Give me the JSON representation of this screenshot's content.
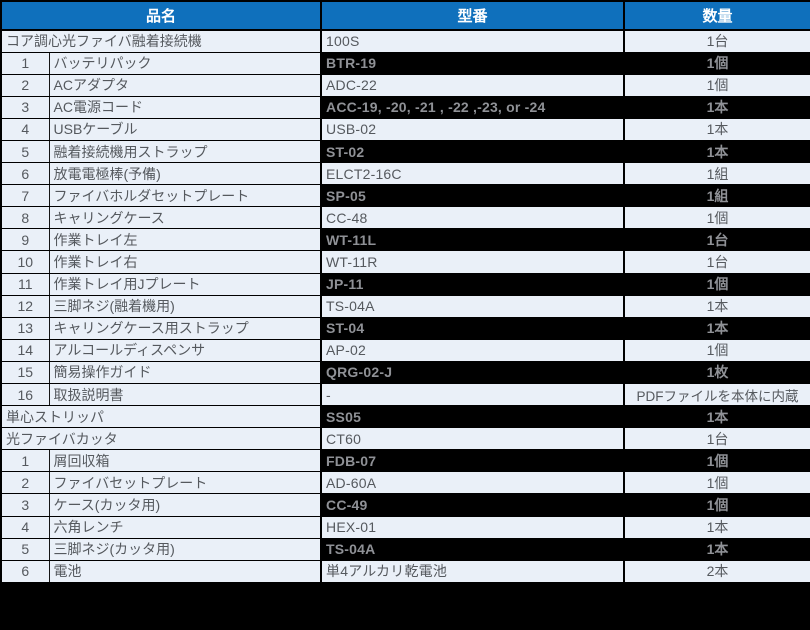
{
  "table": {
    "columns": [
      {
        "label": "品名"
      },
      {
        "label": "型番"
      },
      {
        "label": "数量"
      }
    ],
    "rows": [
      {
        "full": true,
        "num": "",
        "name": "コア調心光ファイバ融着接続機",
        "model": "100S",
        "qty": "1台",
        "dark": false
      },
      {
        "full": false,
        "num": "1",
        "name": "バッテリパック",
        "model": "BTR-19",
        "qty": "1個",
        "dark": true
      },
      {
        "full": false,
        "num": "2",
        "name": "ACアダプタ",
        "model": "ADC-22",
        "qty": "1個",
        "dark": false
      },
      {
        "full": false,
        "num": "3",
        "name": "AC電源コード",
        "model": "ACC-19, -20, -21 , -22 ,-23, or -24",
        "qty": "1本",
        "dark": true
      },
      {
        "full": false,
        "num": "4",
        "name": "USBケーブル",
        "model": "USB-02",
        "qty": "1本",
        "dark": false
      },
      {
        "full": false,
        "num": "5",
        "name": "融着接続機用ストラップ",
        "model": "ST-02",
        "qty": "1本",
        "dark": true
      },
      {
        "full": false,
        "num": "6",
        "name": "放電電極棒(予備)",
        "model": "ELCT2-16C",
        "qty": "1組",
        "dark": false
      },
      {
        "full": false,
        "num": "7",
        "name": "ファイバホルダセットプレート",
        "model": "SP-05",
        "qty": "1組",
        "dark": true
      },
      {
        "full": false,
        "num": "8",
        "name": "キャリングケース",
        "model": "CC-48",
        "qty": "1個",
        "dark": false
      },
      {
        "full": false,
        "num": "9",
        "name": "作業トレイ左",
        "model": "WT-11L",
        "qty": "1台",
        "dark": true
      },
      {
        "full": false,
        "num": "10",
        "name": "作業トレイ右",
        "model": "WT-11R",
        "qty": "1台",
        "dark": false
      },
      {
        "full": false,
        "num": "11",
        "name": "作業トレイ用Jプレート",
        "model": "JP-11",
        "qty": "1個",
        "dark": true
      },
      {
        "full": false,
        "num": "12",
        "name": "三脚ネジ(融着機用)",
        "model": "TS-04A",
        "qty": "1本",
        "dark": false
      },
      {
        "full": false,
        "num": "13",
        "name": "キャリングケース用ストラップ",
        "model": "ST-04",
        "qty": "1本",
        "dark": true
      },
      {
        "full": false,
        "num": "14",
        "name": "アルコールディスペンサ",
        "model": "AP-02",
        "qty": "1個",
        "dark": false
      },
      {
        "full": false,
        "num": "15",
        "name": "簡易操作ガイド",
        "model": "QRG-02-J",
        "qty": "1枚",
        "dark": true
      },
      {
        "full": false,
        "num": "16",
        "name": "取扱説明書",
        "model": "-",
        "qty": "PDFファイルを本体に内蔵",
        "dark": false
      },
      {
        "full": true,
        "num": "",
        "name": "単心ストリッパ",
        "model": "SS05",
        "qty": "1本",
        "dark": true
      },
      {
        "full": true,
        "num": "",
        "name": "光ファイバカッタ",
        "model": "CT60",
        "qty": "1台",
        "dark": false
      },
      {
        "full": false,
        "num": "1",
        "name": "屑回収箱",
        "model": "FDB-07",
        "qty": "1個",
        "dark": true
      },
      {
        "full": false,
        "num": "2",
        "name": "ファイバセットプレート",
        "model": "AD-60A",
        "qty": "1個",
        "dark": false
      },
      {
        "full": false,
        "num": "3",
        "name": "ケース(カッタ用)",
        "model": "CC-49",
        "qty": "1個",
        "dark": true
      },
      {
        "full": false,
        "num": "4",
        "name": "六角レンチ",
        "model": "HEX-01",
        "qty": "1本",
        "dark": false
      },
      {
        "full": false,
        "num": "5",
        "name": "三脚ネジ(カッタ用)",
        "model": "TS-04A",
        "qty": "1本",
        "dark": true
      },
      {
        "full": false,
        "num": "6",
        "name": "電池",
        "model": "単4アルカリ乾電池",
        "qty": "2本",
        "dark": false
      }
    ]
  },
  "colors": {
    "header_bg": "#0F70BC",
    "header_fg": "#FFFFFF",
    "row_bg": "#EAF0F8",
    "row_fg": "#55595E",
    "dark_bg": "#000000",
    "dark_fg": "#8F9196",
    "border": "#000000"
  }
}
